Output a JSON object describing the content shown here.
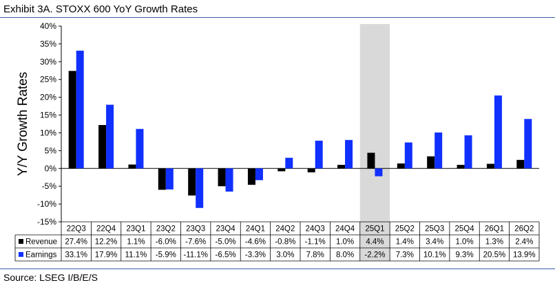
{
  "title": "Exhibit 3A.  STOXX 600 YoY Growth Rates",
  "source": "Source: LSEG I/B/E/S",
  "colors": {
    "revenue": "#000000",
    "earnings": "#1030ff",
    "highlight": "#d9d9d9",
    "rule": "#3b5aa8"
  },
  "chart_data": {
    "type": "bar",
    "ylabel": "Y/Y Growth Rates",
    "ylim": [
      -15,
      40
    ],
    "yticks": [
      "40%",
      "35%",
      "30%",
      "25%",
      "20%",
      "15%",
      "10%",
      "5%",
      "0%",
      "-5%",
      "-10%",
      "-15%"
    ],
    "ytick_values": [
      40,
      35,
      30,
      25,
      20,
      15,
      10,
      5,
      0,
      -5,
      -10,
      -15
    ],
    "grid": false,
    "categories": [
      "22Q3",
      "22Q4",
      "23Q1",
      "23Q2",
      "23Q3",
      "23Q4",
      "24Q1",
      "24Q2",
      "24Q3",
      "24Q4",
      "25Q1",
      "25Q2",
      "25Q3",
      "25Q4",
      "26Q1",
      "26Q2"
    ],
    "highlight_category": "25Q1",
    "series": [
      {
        "name": "Revenue",
        "values": [
          27.4,
          12.2,
          1.1,
          -6.0,
          -7.6,
          -5.0,
          -4.6,
          -0.8,
          -1.1,
          1.0,
          4.4,
          1.4,
          3.4,
          1.0,
          1.3,
          2.4
        ],
        "labels": [
          "27.4%",
          "12.2%",
          "1.1%",
          "-6.0%",
          "-7.6%",
          "-5.0%",
          "-4.6%",
          "-0.8%",
          "-1.1%",
          "1.0%",
          "4.4%",
          "1.4%",
          "3.4%",
          "1.0%",
          "1.3%",
          "2.4%"
        ]
      },
      {
        "name": "Earnings",
        "values": [
          33.1,
          17.9,
          11.1,
          -5.9,
          -11.1,
          -6.5,
          -3.3,
          3.0,
          7.8,
          8.0,
          -2.2,
          7.3,
          10.1,
          9.3,
          20.5,
          13.9
        ],
        "labels": [
          "33.1%",
          "17.9%",
          "11.1%",
          "-5.9%",
          "-11.1%",
          "-6.5%",
          "-3.3%",
          "3.0%",
          "7.8%",
          "8.0%",
          "-2.2%",
          "7.3%",
          "10.1%",
          "9.3%",
          "20.5%",
          "13.9%"
        ]
      }
    ]
  }
}
